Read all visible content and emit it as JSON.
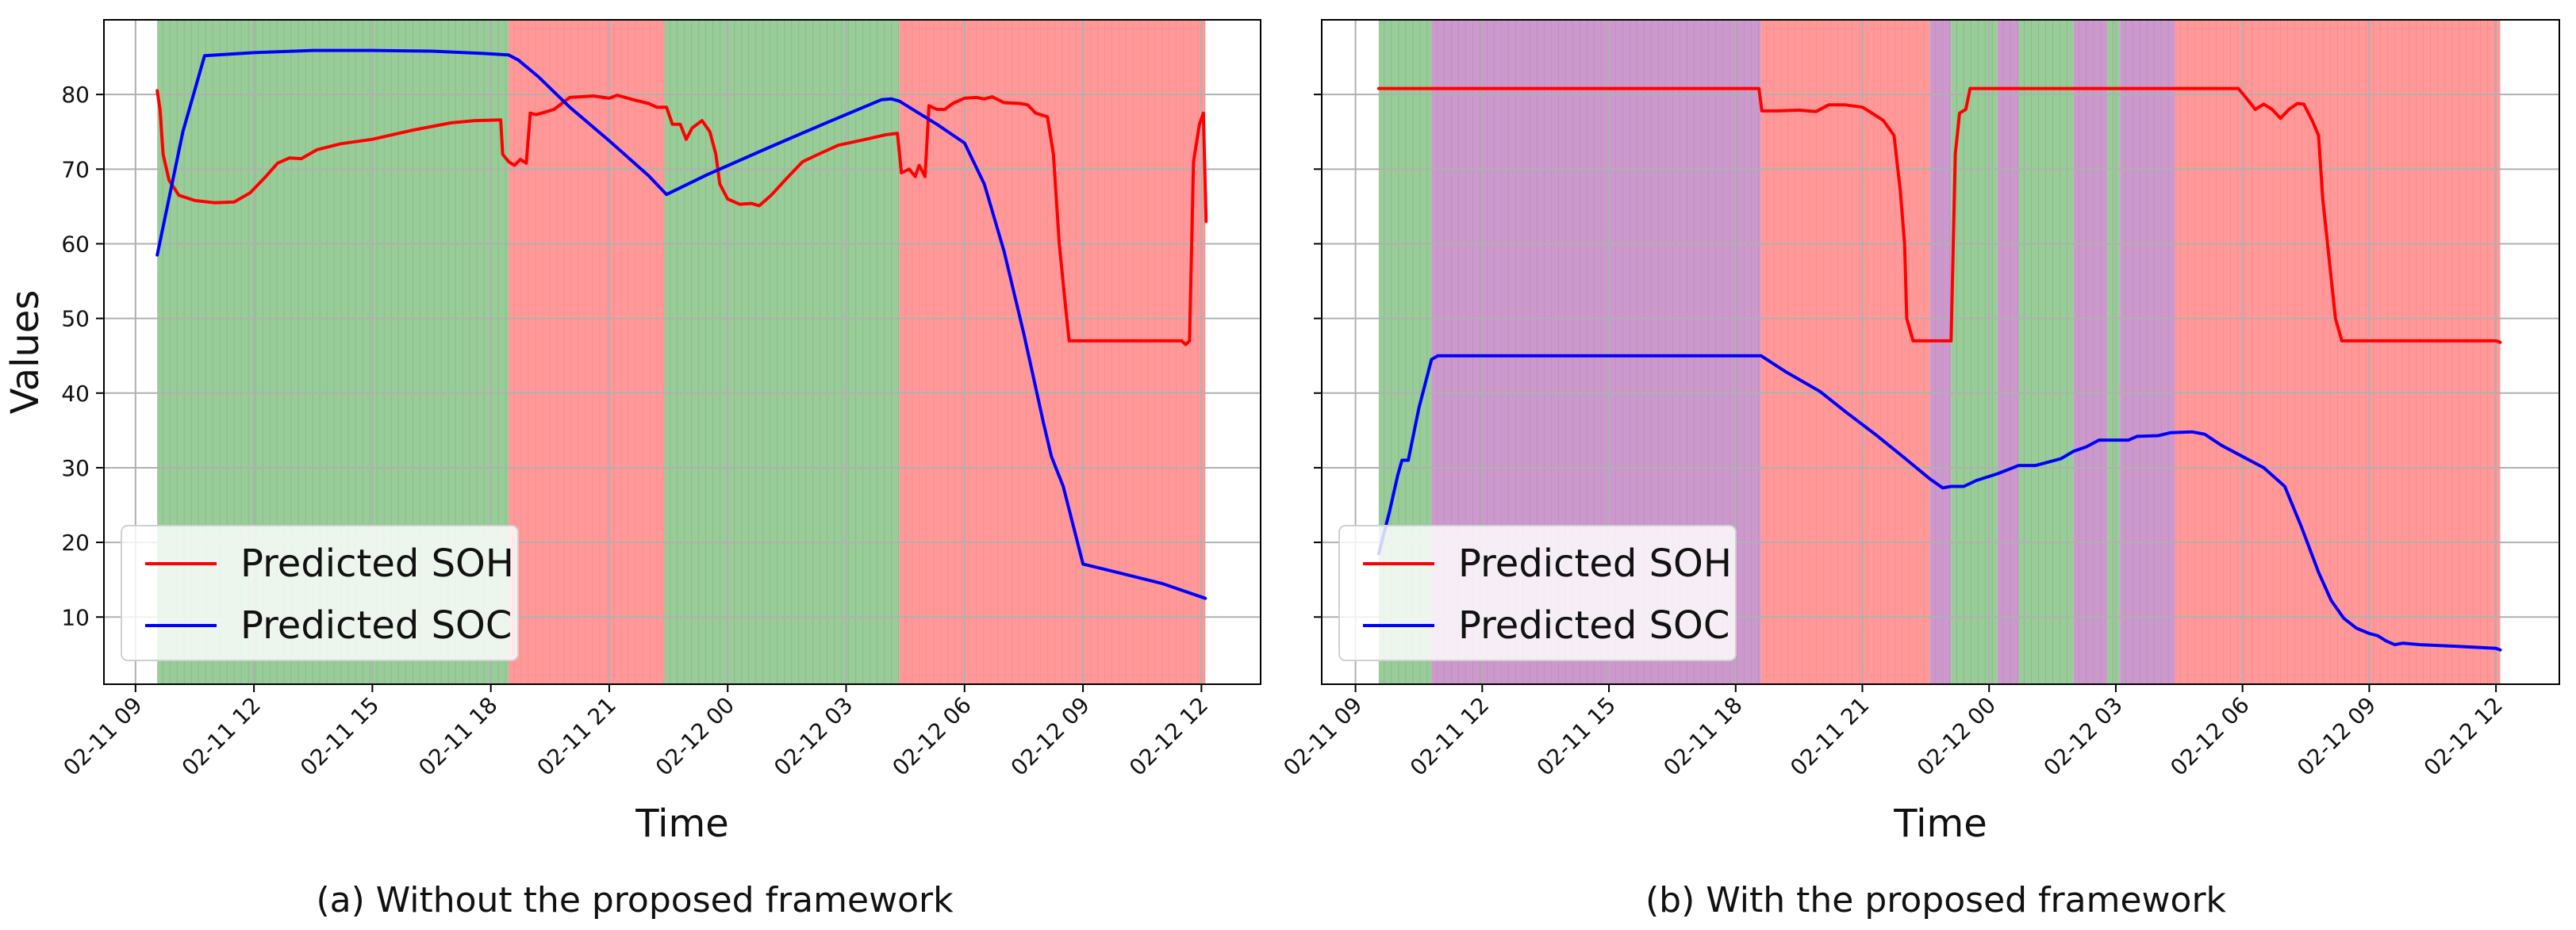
{
  "captions": {
    "a": "(a) Without the proposed framework",
    "b": "(b) With the proposed framework"
  },
  "colors": {
    "soh": "#ff0000",
    "soc": "#0000ff",
    "green_band": "#99cc99",
    "red_band": "#ff9999",
    "purple_band": "#cc99cc",
    "grid": "#b0b0b0"
  },
  "chart_data": [
    {
      "type": "line",
      "xlabel": "Time",
      "ylabel": "Values",
      "x_ticks": [
        "02-11 09",
        "02-11 12",
        "02-11 15",
        "02-11 18",
        "02-11 21",
        "02-12 00",
        "02-12 03",
        "02-12 06",
        "02-12 09",
        "02-12 12"
      ],
      "x_tick_hours": [
        0,
        3,
        6,
        9,
        12,
        15,
        18,
        21,
        24,
        27
      ],
      "xlim_hours": [
        -0.8,
        28.5
      ],
      "ylim": [
        1,
        90
      ],
      "y_ticks": [
        10,
        20,
        30,
        40,
        50,
        60,
        70,
        80
      ],
      "grid": true,
      "legend": {
        "placement": "lower-left",
        "entries": [
          "Predicted SOH",
          "Predicted SOC"
        ]
      },
      "background_bands": [
        {
          "start": 0.55,
          "end": 9.45,
          "color": "green"
        },
        {
          "start": 9.45,
          "end": 13.4,
          "color": "red"
        },
        {
          "start": 13.4,
          "end": 19.35,
          "color": "green"
        },
        {
          "start": 19.35,
          "end": 27.1,
          "color": "red"
        }
      ],
      "series": [
        {
          "name": "Predicted SOH",
          "color": "red",
          "points": [
            [
              0.55,
              80.5
            ],
            [
              0.62,
              78
            ],
            [
              0.7,
              72
            ],
            [
              0.85,
              68.5
            ],
            [
              1.1,
              66.5
            ],
            [
              1.5,
              65.8
            ],
            [
              2.0,
              65.5
            ],
            [
              2.5,
              65.6
            ],
            [
              2.9,
              66.8
            ],
            [
              3.3,
              69
            ],
            [
              3.6,
              70.8
            ],
            [
              3.9,
              71.5
            ],
            [
              4.2,
              71.4
            ],
            [
              4.6,
              72.6
            ],
            [
              5.2,
              73.4
            ],
            [
              6.0,
              74
            ],
            [
              7.0,
              75.2
            ],
            [
              8.0,
              76.2
            ],
            [
              8.6,
              76.5
            ],
            [
              9.25,
              76.6
            ],
            [
              9.3,
              72
            ],
            [
              9.45,
              71
            ],
            [
              9.6,
              70.5
            ],
            [
              9.75,
              71.3
            ],
            [
              9.9,
              70.8
            ],
            [
              10.0,
              77.5
            ],
            [
              10.15,
              77.3
            ],
            [
              10.35,
              77.6
            ],
            [
              10.6,
              78
            ],
            [
              11.0,
              79.6
            ],
            [
              11.6,
              79.8
            ],
            [
              12.0,
              79.5
            ],
            [
              12.2,
              79.9
            ],
            [
              12.6,
              79.3
            ],
            [
              13.0,
              78.8
            ],
            [
              13.2,
              78.3
            ],
            [
              13.45,
              78.3
            ],
            [
              13.6,
              76
            ],
            [
              13.8,
              76
            ],
            [
              13.95,
              74
            ],
            [
              14.1,
              75.5
            ],
            [
              14.35,
              76.5
            ],
            [
              14.55,
              75
            ],
            [
              14.7,
              72
            ],
            [
              14.8,
              68
            ],
            [
              15.0,
              66
            ],
            [
              15.3,
              65.3
            ],
            [
              15.6,
              65.4
            ],
            [
              15.8,
              65.1
            ],
            [
              16.1,
              66.5
            ],
            [
              16.5,
              68.8
            ],
            [
              16.9,
              71
            ],
            [
              17.3,
              72
            ],
            [
              17.8,
              73.2
            ],
            [
              18.5,
              74
            ],
            [
              19.0,
              74.6
            ],
            [
              19.3,
              74.8
            ],
            [
              19.4,
              69.5
            ],
            [
              19.6,
              70
            ],
            [
              19.75,
              69
            ],
            [
              19.85,
              70.5
            ],
            [
              20.0,
              69
            ],
            [
              20.1,
              78.5
            ],
            [
              20.3,
              78
            ],
            [
              20.5,
              78
            ],
            [
              20.7,
              78.8
            ],
            [
              21.0,
              79.5
            ],
            [
              21.3,
              79.6
            ],
            [
              21.5,
              79.4
            ],
            [
              21.7,
              79.7
            ],
            [
              22.0,
              78.9
            ],
            [
              22.4,
              78.8
            ],
            [
              22.6,
              78.6
            ],
            [
              22.8,
              77.5
            ],
            [
              23.1,
              77
            ],
            [
              23.25,
              72
            ],
            [
              23.4,
              60
            ],
            [
              23.55,
              52
            ],
            [
              23.65,
              47
            ],
            [
              24.0,
              47
            ],
            [
              25.0,
              47
            ],
            [
              26.0,
              47
            ],
            [
              26.5,
              47
            ],
            [
              26.6,
              46.5
            ],
            [
              26.7,
              47
            ],
            [
              26.8,
              71
            ],
            [
              26.95,
              76
            ],
            [
              27.05,
              77.5
            ],
            [
              27.12,
              63
            ]
          ]
        },
        {
          "name": "Predicted SOC",
          "color": "blue",
          "points": [
            [
              0.55,
              58.5
            ],
            [
              1.2,
              75
            ],
            [
              1.75,
              85.2
            ],
            [
              3.0,
              85.6
            ],
            [
              4.5,
              85.9
            ],
            [
              6.0,
              85.9
            ],
            [
              7.5,
              85.8
            ],
            [
              8.8,
              85.5
            ],
            [
              9.45,
              85.3
            ],
            [
              9.7,
              84.6
            ],
            [
              10.2,
              82.4
            ],
            [
              11.0,
              78.3
            ],
            [
              12.0,
              73.8
            ],
            [
              13.0,
              69.1
            ],
            [
              13.45,
              66.6
            ],
            [
              14.5,
              69.3
            ],
            [
              16.0,
              72.8
            ],
            [
              17.5,
              76.2
            ],
            [
              18.9,
              79.3
            ],
            [
              19.15,
              79.4
            ],
            [
              19.35,
              79.1
            ],
            [
              20.3,
              76
            ],
            [
              21.0,
              73.5
            ],
            [
              21.5,
              68
            ],
            [
              22.0,
              59
            ],
            [
              22.5,
              48
            ],
            [
              23.0,
              36
            ],
            [
              23.2,
              31.5
            ],
            [
              23.5,
              27.5
            ],
            [
              24.0,
              17.1
            ],
            [
              25.0,
              15.8
            ],
            [
              26.0,
              14.5
            ],
            [
              27.1,
              12.5
            ]
          ]
        }
      ]
    },
    {
      "type": "line",
      "xlabel": "Time",
      "ylabel": "",
      "x_ticks": [
        "02-11 09",
        "02-11 12",
        "02-11 15",
        "02-11 18",
        "02-11 21",
        "02-12 00",
        "02-12 03",
        "02-12 06",
        "02-12 09",
        "02-12 12"
      ],
      "x_tick_hours": [
        0,
        3,
        6,
        9,
        12,
        15,
        18,
        21,
        24,
        27
      ],
      "xlim_hours": [
        -0.8,
        28.5
      ],
      "ylim": [
        1,
        90
      ],
      "y_ticks": [
        10,
        20,
        30,
        40,
        50,
        60,
        70,
        80
      ],
      "grid": true,
      "legend": {
        "placement": "lower-left",
        "entries": [
          "Predicted SOH",
          "Predicted SOC"
        ]
      },
      "background_bands": [
        {
          "start": 0.55,
          "end": 1.8,
          "color": "green"
        },
        {
          "start": 1.8,
          "end": 9.6,
          "color": "purple"
        },
        {
          "start": 9.6,
          "end": 13.6,
          "color": "red"
        },
        {
          "start": 13.6,
          "end": 14.1,
          "color": "purple"
        },
        {
          "start": 14.1,
          "end": 15.2,
          "color": "green"
        },
        {
          "start": 15.2,
          "end": 15.7,
          "color": "purple"
        },
        {
          "start": 15.7,
          "end": 17.0,
          "color": "green"
        },
        {
          "start": 17.0,
          "end": 17.8,
          "color": "purple"
        },
        {
          "start": 17.8,
          "end": 18.1,
          "color": "green"
        },
        {
          "start": 18.1,
          "end": 19.4,
          "color": "purple"
        },
        {
          "start": 19.4,
          "end": 27.1,
          "color": "red"
        }
      ],
      "series": [
        {
          "name": "Predicted SOH",
          "color": "red",
          "points": [
            [
              0.55,
              80.8
            ],
            [
              5.0,
              80.8
            ],
            [
              9.0,
              80.8
            ],
            [
              9.55,
              80.8
            ],
            [
              9.62,
              77.8
            ],
            [
              10.0,
              77.8
            ],
            [
              10.5,
              77.9
            ],
            [
              10.9,
              77.7
            ],
            [
              11.2,
              78.6
            ],
            [
              11.6,
              78.6
            ],
            [
              12.0,
              78.3
            ],
            [
              12.2,
              77.6
            ],
            [
              12.5,
              76.5
            ],
            [
              12.75,
              74.5
            ],
            [
              12.9,
              67
            ],
            [
              13.0,
              60
            ],
            [
              13.05,
              50
            ],
            [
              13.2,
              47
            ],
            [
              13.5,
              47
            ],
            [
              14.1,
              47
            ],
            [
              14.2,
              72
            ],
            [
              14.3,
              77.5
            ],
            [
              14.45,
              78
            ],
            [
              14.55,
              80.8
            ],
            [
              15.0,
              80.8
            ],
            [
              16.0,
              80.8
            ],
            [
              17.0,
              80.8
            ],
            [
              18.0,
              80.8
            ],
            [
              19.0,
              80.8
            ],
            [
              20.0,
              80.8
            ],
            [
              20.9,
              80.8
            ],
            [
              21.05,
              79.8
            ],
            [
              21.3,
              78
            ],
            [
              21.5,
              78.7
            ],
            [
              21.7,
              78
            ],
            [
              21.9,
              76.8
            ],
            [
              22.1,
              78
            ],
            [
              22.3,
              78.8
            ],
            [
              22.45,
              78.7
            ],
            [
              22.65,
              76.5
            ],
            [
              22.8,
              74.5
            ],
            [
              22.9,
              66
            ],
            [
              23.05,
              58
            ],
            [
              23.2,
              50
            ],
            [
              23.35,
              47
            ],
            [
              24.0,
              47
            ],
            [
              25.0,
              47
            ],
            [
              26.0,
              47
            ],
            [
              27.0,
              47
            ],
            [
              27.1,
              46.8
            ]
          ]
        },
        {
          "name": "Predicted SOC",
          "color": "blue",
          "points": [
            [
              0.55,
              18.5
            ],
            [
              0.8,
              24
            ],
            [
              1.0,
              29
            ],
            [
              1.1,
              31
            ],
            [
              1.25,
              31
            ],
            [
              1.5,
              38
            ],
            [
              1.8,
              44.5
            ],
            [
              1.95,
              45
            ],
            [
              3.0,
              45
            ],
            [
              5.0,
              45
            ],
            [
              7.0,
              45
            ],
            [
              9.0,
              45
            ],
            [
              9.6,
              45
            ],
            [
              10.2,
              42.8
            ],
            [
              11.0,
              40.2
            ],
            [
              11.6,
              37.5
            ],
            [
              12.3,
              34.5
            ],
            [
              13.0,
              31.3
            ],
            [
              13.6,
              28.5
            ],
            [
              13.9,
              27.3
            ],
            [
              14.1,
              27.5
            ],
            [
              14.4,
              27.5
            ],
            [
              14.7,
              28.3
            ],
            [
              15.2,
              29.2
            ],
            [
              15.7,
              30.3
            ],
            [
              16.1,
              30.3
            ],
            [
              16.3,
              30.6
            ],
            [
              16.7,
              31.2
            ],
            [
              17.0,
              32.2
            ],
            [
              17.3,
              32.8
            ],
            [
              17.6,
              33.7
            ],
            [
              18.0,
              33.7
            ],
            [
              18.3,
              33.7
            ],
            [
              18.5,
              34.2
            ],
            [
              19.0,
              34.3
            ],
            [
              19.3,
              34.7
            ],
            [
              19.8,
              34.8
            ],
            [
              20.1,
              34.5
            ],
            [
              20.5,
              33
            ],
            [
              21.0,
              31.5
            ],
            [
              21.5,
              30
            ],
            [
              22.0,
              27.5
            ],
            [
              22.4,
              22
            ],
            [
              22.8,
              16
            ],
            [
              23.1,
              12.2
            ],
            [
              23.4,
              9.8
            ],
            [
              23.7,
              8.5
            ],
            [
              24.0,
              7.8
            ],
            [
              24.2,
              7.5
            ],
            [
              24.4,
              6.8
            ],
            [
              24.6,
              6.3
            ],
            [
              24.8,
              6.5
            ],
            [
              25.2,
              6.3
            ],
            [
              26.0,
              6.1
            ],
            [
              27.0,
              5.8
            ],
            [
              27.1,
              5.6
            ]
          ]
        }
      ]
    }
  ]
}
